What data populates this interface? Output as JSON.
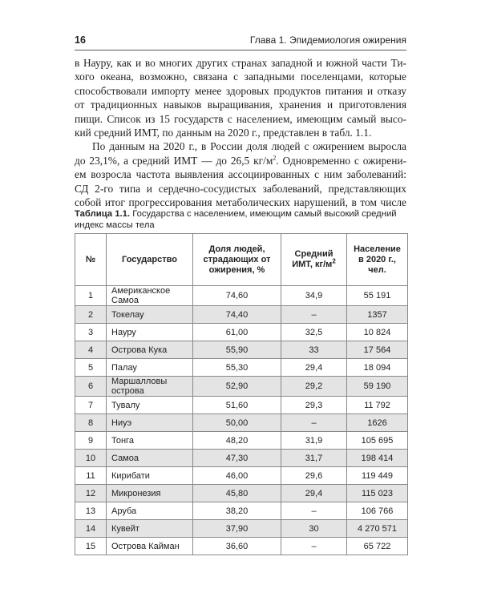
{
  "header": {
    "page_number": "16",
    "chapter": "Глава 1. Эпидемиология ожирения"
  },
  "paragraphs": [
    {
      "lines": [
        {
          "text": "в Науру, как и во многих других странах западной и южной части Ти-"
        },
        {
          "text": "хого океана, возможно, связана с западными поселенцами, которые"
        },
        {
          "text": "способствовали импорту менее здоровых продуктов питания и отказу"
        },
        {
          "text": "от традиционных навыков выращивания, хранения и приготовления"
        },
        {
          "text": "пищи. Список из 15 государств с населением, имеющим самый высо-"
        },
        {
          "text": "кий средний ИМТ, по данным на 2020 г., представлен в табл. 1.1."
        }
      ]
    },
    {
      "lines": [
        {
          "text": "По данным на 2020 г., в России доля людей с ожирением выросла"
        },
        {
          "text": "до 23,1%, а средний ИМТ — до 26,5 кг/м",
          "sup": "2",
          "after": ". Одновременно с ожирени-"
        },
        {
          "text": "ем возросла частота выявления ассоциированных с ним заболеваний:"
        },
        {
          "text": "СД 2-го типа и сердечно-сосудистых заболеваний, представляющих"
        },
        {
          "text": "собой итог прогрессирования метаболических нарушений, в том числе"
        }
      ]
    }
  ],
  "table": {
    "caption_label": "Таблица 1.1.",
    "caption_text": "Государства с населением, имеющим самый высокий средний индекс массы тела",
    "columns": [
      {
        "text": "№"
      },
      {
        "text": "Государство"
      },
      {
        "text": "Доля людей, страдающих от ожирения, %"
      },
      {
        "text": "Средний ИМТ, кг/м",
        "sup": "2"
      },
      {
        "text": "Население в 2020 г., чел."
      }
    ],
    "rows": [
      [
        "1",
        "Американское Самоа",
        "74,60",
        "34,9",
        "55 191"
      ],
      [
        "2",
        "Токелау",
        "74,40",
        "–",
        "1357"
      ],
      [
        "3",
        "Науру",
        "61,00",
        "32,5",
        "10 824"
      ],
      [
        "4",
        "Острова Кука",
        "55,90",
        "33",
        "17 564"
      ],
      [
        "5",
        "Палау",
        "55,30",
        "29,4",
        "18 094"
      ],
      [
        "6",
        "Маршалловы острова",
        "52,90",
        "29,2",
        "59 190"
      ],
      [
        "7",
        "Тувалу",
        "51,60",
        "29,3",
        "11 792"
      ],
      [
        "8",
        "Ниуэ",
        "50,00",
        "–",
        "1626"
      ],
      [
        "9",
        "Тонга",
        "48,20",
        "31,9",
        "105 695"
      ],
      [
        "10",
        "Самоа",
        "47,30",
        "31,7",
        "198 414"
      ],
      [
        "11",
        "Кирибати",
        "46,00",
        "29,6",
        "119 449"
      ],
      [
        "12",
        "Микронезия",
        "45,80",
        "29,4",
        "115 023"
      ],
      [
        "13",
        "Аруба",
        "38,20",
        "–",
        "106 766"
      ],
      [
        "14",
        "Кувейт",
        "37,90",
        "30",
        "4 270 571"
      ],
      [
        "15",
        "Острова Кайман",
        "36,60",
        "–",
        "65 722"
      ]
    ]
  }
}
